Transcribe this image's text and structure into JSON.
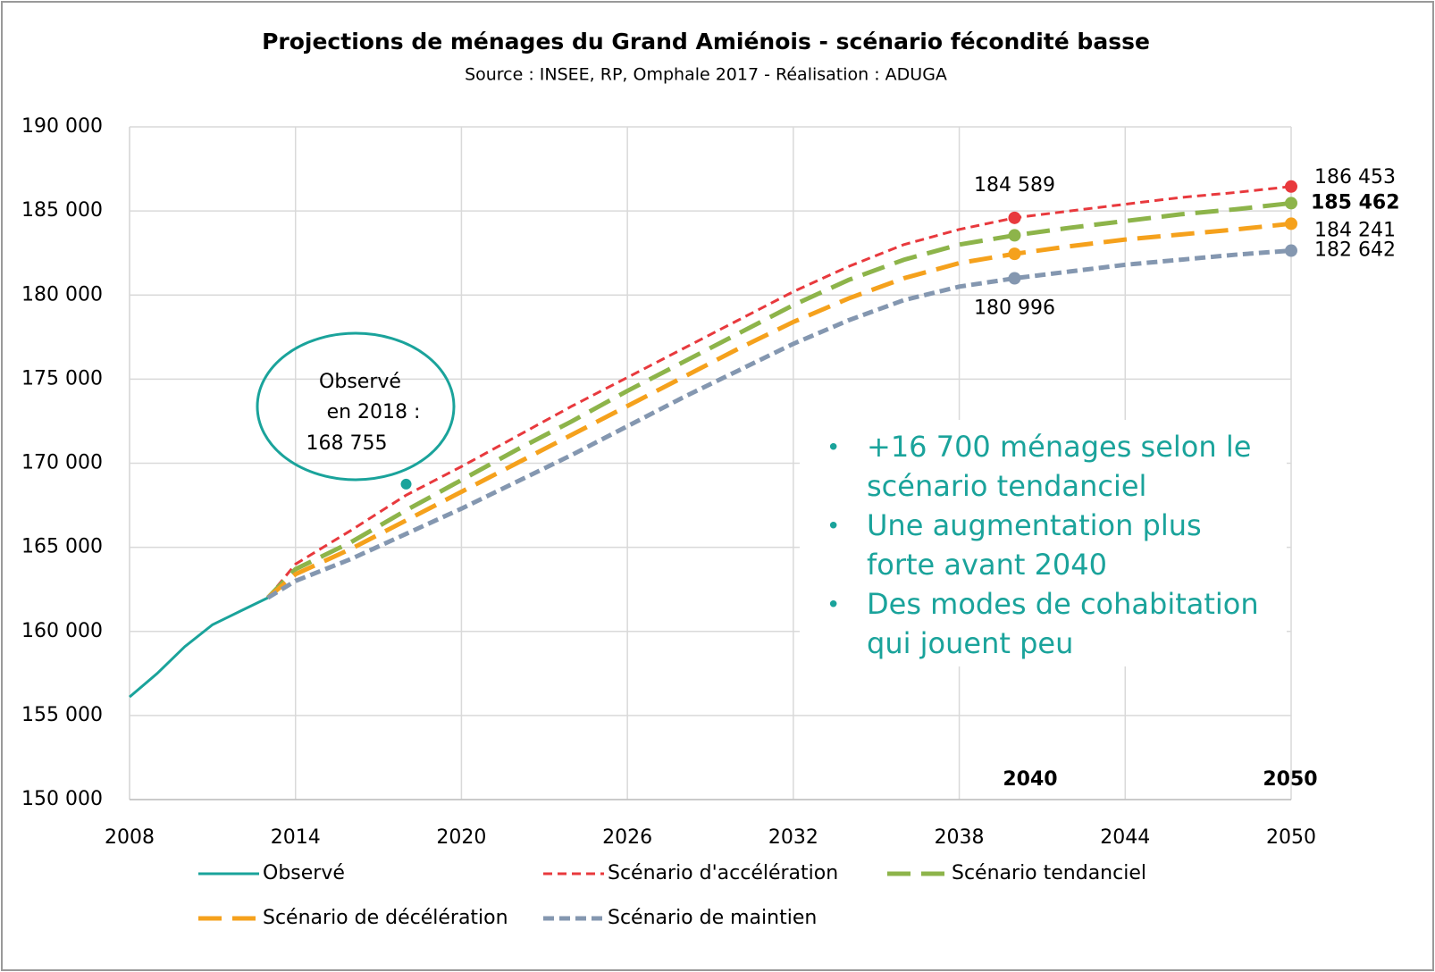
{
  "chart_data": {
    "type": "line",
    "title": "Projections de ménages du Grand Amiénois - scénario fécondité basse",
    "subtitle": "Source : INSEE, RP, Omphale 2017 - Réalisation : ADUGA",
    "xlim": [
      2008,
      2050
    ],
    "xticks": [
      2008,
      2014,
      2020,
      2026,
      2032,
      2038,
      2044,
      2050
    ],
    "ylim": [
      150000,
      190000
    ],
    "yticks": [
      {
        "value": 150000,
        "label": "150 000"
      },
      {
        "value": 155000,
        "label": "155 000"
      },
      {
        "value": 160000,
        "label": "160 000"
      },
      {
        "value": 165000,
        "label": "165 000"
      },
      {
        "value": 170000,
        "label": "170 000"
      },
      {
        "value": 175000,
        "label": "175 000"
      },
      {
        "value": 180000,
        "label": "180 000"
      },
      {
        "value": 185000,
        "label": "185 000"
      },
      {
        "value": 190000,
        "label": "190 000"
      }
    ],
    "grid": true,
    "series": [
      {
        "name": "Observé",
        "color": "#1aa39b",
        "dash": "none",
        "x": [
          2008,
          2009,
          2010,
          2011,
          2012,
          2013
        ],
        "values": [
          156100,
          157500,
          159100,
          160400,
          161200,
          162000
        ]
      },
      {
        "name": "Scénario d'accélération",
        "color": "#e8393d",
        "dash": "short-thin",
        "x": [
          2013,
          2014,
          2016,
          2018,
          2020,
          2022,
          2024,
          2026,
          2028,
          2030,
          2032,
          2034,
          2036,
          2038,
          2040,
          2042,
          2044,
          2046,
          2048,
          2050
        ],
        "values": [
          162000,
          164000,
          166000,
          168100,
          169800,
          171600,
          173400,
          175100,
          176800,
          178500,
          180200,
          181700,
          183000,
          183900,
          184589,
          185000,
          185400,
          185800,
          186100,
          186453
        ],
        "value_labels": [
          null,
          null,
          null,
          null,
          null,
          null,
          null,
          null,
          null,
          null,
          null,
          null,
          null,
          null,
          "184 589",
          null,
          null,
          null,
          null,
          "186 453"
        ]
      },
      {
        "name": "Scénario tendanciel",
        "color": "#8db44a",
        "dash": "long",
        "x": [
          2013,
          2014,
          2016,
          2018,
          2020,
          2022,
          2024,
          2026,
          2028,
          2030,
          2032,
          2034,
          2036,
          2038,
          2040,
          2042,
          2044,
          2046,
          2048,
          2050
        ],
        "values": [
          162000,
          163700,
          165300,
          167200,
          169000,
          170800,
          172500,
          174300,
          176000,
          177700,
          179400,
          180900,
          182100,
          183000,
          183550,
          184000,
          184400,
          184800,
          185100,
          185462
        ],
        "value_labels": [
          null,
          null,
          null,
          null,
          null,
          null,
          null,
          null,
          null,
          null,
          null,
          null,
          null,
          null,
          null,
          null,
          null,
          null,
          null,
          "185 462"
        ]
      },
      {
        "name": "Scénario de décélération",
        "color": "#f5a11c",
        "dash": "long",
        "x": [
          2013,
          2014,
          2016,
          2018,
          2020,
          2022,
          2024,
          2026,
          2028,
          2030,
          2032,
          2034,
          2036,
          2038,
          2040,
          2042,
          2044,
          2046,
          2048,
          2050
        ],
        "values": [
          162000,
          163400,
          164900,
          166600,
          168300,
          170000,
          171700,
          173400,
          175100,
          176800,
          178400,
          179800,
          181000,
          181900,
          182450,
          182900,
          183300,
          183600,
          183900,
          184241
        ],
        "value_labels": [
          null,
          null,
          null,
          null,
          null,
          null,
          null,
          null,
          null,
          null,
          null,
          null,
          null,
          null,
          null,
          null,
          null,
          null,
          null,
          "184 241"
        ]
      },
      {
        "name": "Scénario de maintien",
        "color": "#8497b0",
        "dash": "short",
        "x": [
          2013,
          2014,
          2016,
          2018,
          2020,
          2022,
          2024,
          2026,
          2028,
          2030,
          2032,
          2034,
          2036,
          2038,
          2040,
          2042,
          2044,
          2046,
          2048,
          2050
        ],
        "values": [
          162000,
          163000,
          164300,
          165800,
          167300,
          168900,
          170500,
          172200,
          173900,
          175500,
          177100,
          178500,
          179700,
          180500,
          180996,
          181400,
          181800,
          182100,
          182400,
          182642
        ],
        "value_labels": [
          null,
          null,
          null,
          null,
          null,
          null,
          null,
          null,
          null,
          null,
          null,
          null,
          null,
          null,
          "180 996",
          null,
          null,
          null,
          null,
          "182 642"
        ]
      }
    ],
    "observed_point": {
      "x": 2018,
      "value": 168755,
      "label": [
        "Observé",
        "en 2018 :",
        "168 755"
      ]
    },
    "year_labels": [
      "2040",
      "2050"
    ],
    "bullets": [
      [
        "+16 700 ménages selon le",
        "scénario tendanciel"
      ],
      [
        "Une augmentation plus",
        "forte avant 2040"
      ],
      [
        "Des modes de cohabitation",
        "qui jouent peu"
      ]
    ]
  }
}
